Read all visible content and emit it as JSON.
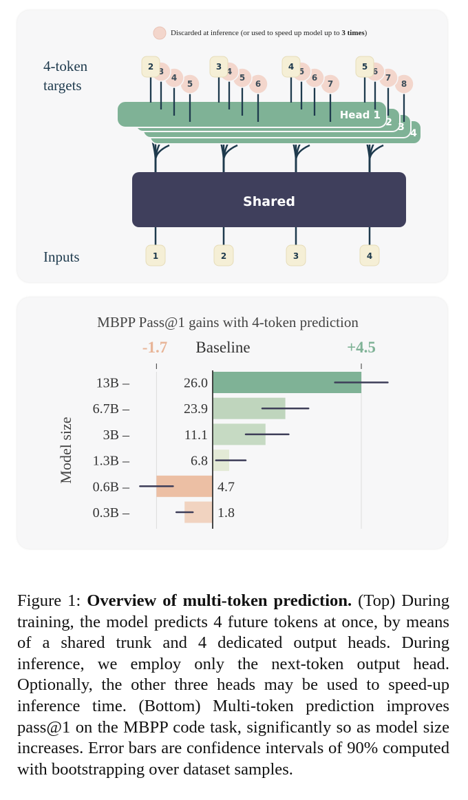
{
  "diagram": {
    "legend": {
      "prefix": "Discarded at inference (or used to speed up model up to ",
      "bold": "3 times",
      "suffix": ")"
    },
    "targets_label": [
      "4-token",
      "targets"
    ],
    "inputs_label": "Inputs",
    "shared_label": "Shared",
    "head_labels": [
      "Head 1",
      "2",
      "3",
      "4"
    ],
    "inputs": [
      "1",
      "2",
      "3",
      "4"
    ],
    "target_groups": [
      [
        "2",
        "3",
        "4",
        "5"
      ],
      [
        "3",
        "4",
        "5",
        "6"
      ],
      [
        "4",
        "5",
        "6",
        "7"
      ],
      [
        "5",
        "6",
        "7",
        "8"
      ]
    ],
    "colors": {
      "head": "#7fb296",
      "head_back": "#8fbfa3",
      "shared": "#3f3f5c",
      "token_box": "#f5efd6",
      "discarded": "#f3d6cc",
      "stem": "#1e3a4d"
    }
  },
  "chart_data": {
    "type": "bar",
    "orientation": "horizontal",
    "title": "MBPP Pass@1  gains with 4-token prediction",
    "ylabel": "Model size",
    "baseline_label": "Baseline",
    "min_label": "-1.7",
    "max_label": "+4.5",
    "xlim": [
      -1.7,
      4.5
    ],
    "categories": [
      "13B",
      "6.7B",
      "3B",
      "1.3B",
      "0.6B",
      "0.3B"
    ],
    "tick_suffix": " –",
    "baseline_values": [
      "26.0",
      "23.9",
      "11.1",
      "6.8",
      "4.7",
      "1.8"
    ],
    "gains": [
      4.5,
      2.2,
      1.6,
      0.5,
      -1.7,
      -0.85
    ],
    "error_low": [
      3.7,
      1.5,
      1.0,
      0.1,
      -2.2,
      -1.1
    ],
    "error_high": [
      5.3,
      2.9,
      2.3,
      1.0,
      -1.2,
      -0.6
    ],
    "colors": {
      "positive": [
        "#7fb296",
        "#bfd5bd",
        "#c6dac3",
        "#e3ead6"
      ],
      "negative": [
        "#ecbfa4",
        "#f1d3c0"
      ],
      "error": "#3d3d58",
      "min_text": "#e8b598",
      "max_text": "#7fb296"
    }
  },
  "caption": {
    "prefix": "Figure 1: ",
    "bold": "Overview of multi-token prediction.",
    "text": " (Top) During training, the model predicts 4 future tokens at once, by means of a shared trunk and 4 dedicated output heads. During inference, we employ only the next-token output head. Optionally, the other three heads may be used to speed-up inference time. (Bottom) Multi-token prediction improves pass@1 on the MBPP code task, significantly so as model size increases. Error bars are confidence intervals of 90% computed with bootstrapping over dataset samples."
  }
}
